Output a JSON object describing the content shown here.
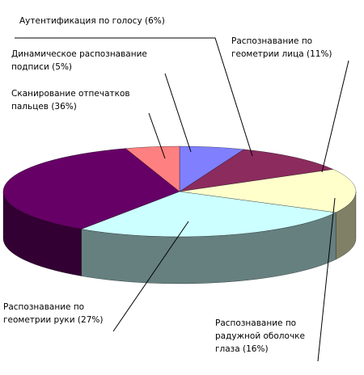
{
  "chart_data": {
    "type": "pie",
    "title": "",
    "three_d": true,
    "slices": [
      {
        "label_lines": [
          "Аутентификация по голосу  (6%)"
        ],
        "value": 6,
        "color": "#8080ff"
      },
      {
        "label_lines": [
          "Распознавание по",
          "геометрии лица (11%)"
        ],
        "value": 11,
        "color": "#8b2b5e"
      },
      {
        "label_lines": [
          "Распознавание по",
          "радужной оболочке",
          "глаза (16%)"
        ],
        "value": 16,
        "color": "#ffffcc"
      },
      {
        "label_lines": [
          "Распознавание по",
          "геометрии руки (27%)"
        ],
        "value": 27,
        "color": "#ccffff"
      },
      {
        "label_lines": [
          "Сканирование отпечатков",
          "пальцев (36%)"
        ],
        "value": 36,
        "color": "#660066"
      },
      {
        "label_lines": [
          "Динамическое распознавание",
          "подписи (5%)"
        ],
        "value": 5,
        "color": "#ff8080"
      }
    ]
  }
}
